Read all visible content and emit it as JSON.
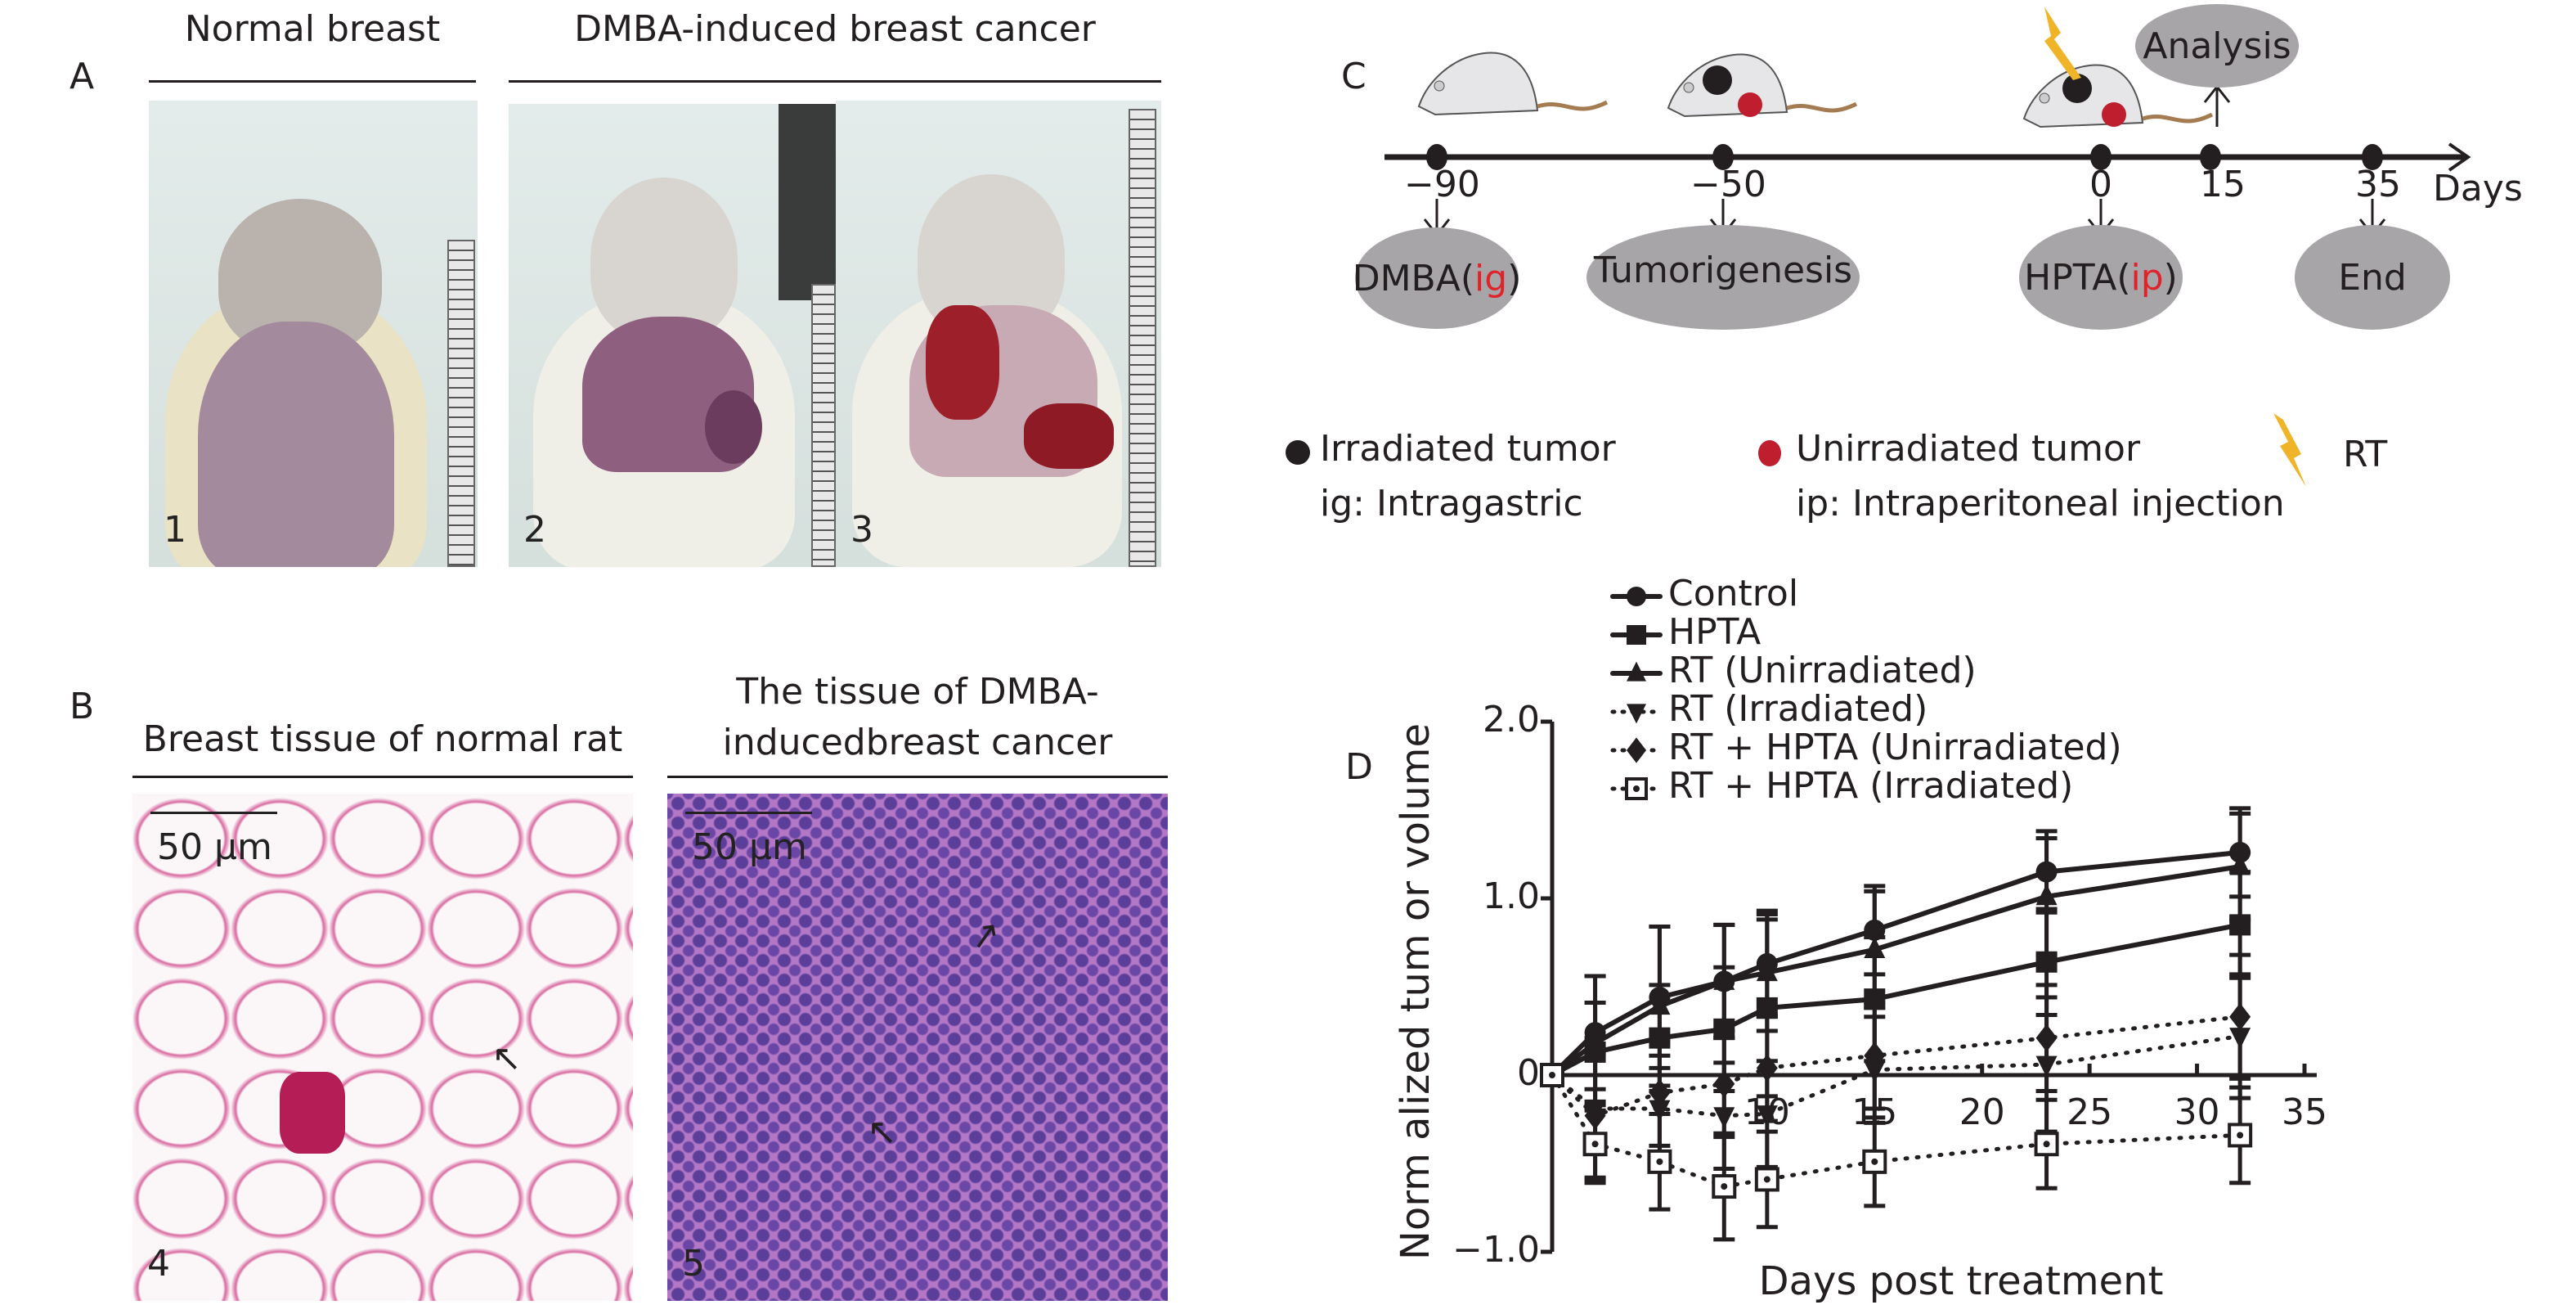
{
  "panel_a": {
    "label": "A",
    "title_left": "Normal breast",
    "title_right": "DMBA-induced breast cancer",
    "photos": [
      {
        "number": "1"
      },
      {
        "number": "2"
      },
      {
        "number": "3"
      }
    ]
  },
  "panel_b": {
    "label": "B",
    "title_left": "Breast tissue of normal rat",
    "title_right_line1": "The tissue of DMBA-",
    "title_right_line2": "inducedbreast cancer",
    "scale_label": "50 μm",
    "photos": [
      {
        "number": "4"
      },
      {
        "number": "5"
      }
    ]
  },
  "panel_c": {
    "label": "C",
    "timeline_ticks": [
      "−90",
      "−50",
      "0",
      "15",
      "35"
    ],
    "timeline_unit": "Days",
    "events": {
      "dmba": "DMBA(",
      "dmba_route": "ig",
      "dmba_close": ")",
      "tumorigenesis": "Tumorigenesis",
      "hpta": "HPTA(",
      "hpta_route": "ip",
      "hpta_close": ")",
      "end": "End",
      "analysis": "Analysis"
    },
    "legend": {
      "irradiated": "Irradiated tumor",
      "ig": "ig: Intragastric",
      "unirradiated": "Unirradiated tumor",
      "ip": "ip: Intraperitoneal injection",
      "rt": "RT"
    },
    "colors": {
      "irradiated": "#231f20",
      "unirradiated": "#be1e2d",
      "rt": "#f0b429",
      "ellipse": "#a7a5a8"
    }
  },
  "chart_data": {
    "panel_label": "D",
    "type": "line",
    "xlabel": "Days post treatment",
    "ylabel": "Norm alized tum or volume",
    "xlim": [
      0,
      35
    ],
    "ylim": [
      -1.0,
      2.0
    ],
    "x_ticks": [
      "10",
      "15",
      "20",
      "25",
      "30",
      "35"
    ],
    "x_tick_values": [
      10,
      15,
      20,
      25,
      30,
      35
    ],
    "y_ticks": [
      "2.0",
      "1.0",
      "0",
      "−1.0"
    ],
    "y_tick_values": [
      2.0,
      1.0,
      0,
      -1.0
    ],
    "legend_placement": "top-left",
    "x": [
      0,
      2,
      5,
      8,
      10,
      15,
      23,
      32
    ],
    "series": [
      {
        "name": "Control",
        "style": "solid",
        "marker": "circle",
        "values": [
          0,
          0.24,
          0.44,
          0.53,
          0.63,
          0.82,
          1.15,
          1.26
        ],
        "error": [
          0,
          0.32,
          0.4,
          0.32,
          0.3,
          0.25,
          0.23,
          0.25
        ]
      },
      {
        "name": "HPTA",
        "style": "solid",
        "marker": "square",
        "values": [
          0,
          0.13,
          0.21,
          0.26,
          0.38,
          0.43,
          0.64,
          0.85
        ],
        "error": [
          0,
          0.28,
          0.3,
          0.35,
          0.5,
          0.35,
          0.3,
          0.3
        ]
      },
      {
        "name": "RT (Unirradiated)",
        "style": "solid",
        "marker": "triangle-up",
        "values": [
          0,
          0.18,
          0.39,
          0.53,
          0.58,
          0.71,
          1.01,
          1.18
        ],
        "error": [
          0,
          0.38,
          0.45,
          0.32,
          0.33,
          0.33,
          0.33,
          0.3
        ]
      },
      {
        "name": "RT (Irradiated)",
        "style": "dotted",
        "marker": "triangle-down",
        "values": [
          0,
          -0.19,
          -0.19,
          -0.23,
          -0.22,
          0.03,
          0.06,
          0.22
        ],
        "error": [
          0,
          0.4,
          0.3,
          0.3,
          0.3,
          0.3,
          0.38,
          0.35
        ]
      },
      {
        "name": "RT + HPTA (Unirradiated)",
        "style": "dotted",
        "marker": "diamond",
        "values": [
          0,
          -0.23,
          -0.1,
          -0.05,
          0.04,
          0.11,
          0.21,
          0.33
        ],
        "error": [
          0,
          0.35,
          0.3,
          0.3,
          0.3,
          0.3,
          0.3,
          0.35
        ]
      },
      {
        "name": "RT + HPTA (Irradiated)",
        "style": "dotted",
        "marker": "square-open",
        "values": [
          0,
          -0.39,
          -0.49,
          -0.63,
          -0.59,
          -0.49,
          -0.39,
          -0.34
        ],
        "error": [
          0,
          0.22,
          0.27,
          0.3,
          0.27,
          0.25,
          0.25,
          0.27
        ]
      }
    ]
  }
}
